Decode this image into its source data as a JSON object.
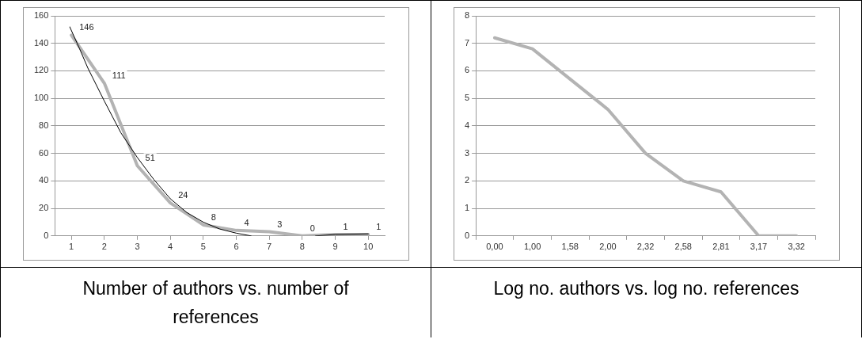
{
  "chart_data": [
    {
      "type": "line",
      "title": "Number of authors vs. number of references",
      "x": [
        1,
        2,
        3,
        4,
        5,
        6,
        7,
        8,
        9,
        10
      ],
      "xlim": [
        0.5,
        10.5
      ],
      "xticks": [
        1,
        2,
        3,
        4,
        5,
        6,
        7,
        8,
        9,
        10
      ],
      "ylim": [
        0,
        160
      ],
      "yticks": [
        0,
        20,
        40,
        60,
        80,
        100,
        120,
        140,
        160
      ],
      "grid": "y",
      "marker": "none",
      "legend": false,
      "series": [
        {
          "color": "#b3b3b3",
          "values": [
            146,
            111,
            51,
            24,
            8,
            4,
            3,
            0,
            1,
            1
          ],
          "value_labels": [
            "146",
            "111",
            "51",
            "24",
            "8",
            "4",
            "3",
            "0",
            "1",
            "1"
          ]
        },
        {
          "type": "line",
          "color": "#000000",
          "x": [
            0.95,
            1.25,
            1.5,
            2,
            2.5,
            3,
            3.5,
            4,
            4.5,
            5,
            5.5,
            6,
            6.45,
            7.5,
            8.4,
            9,
            10
          ],
          "values": [
            152,
            136,
            122,
            98,
            75,
            57,
            41,
            27,
            17,
            10,
            5,
            2,
            0,
            null,
            0,
            1,
            1.5
          ]
        }
      ]
    },
    {
      "type": "line",
      "title": "Log no. authors vs. log no. references",
      "categories": [
        "0,00",
        "1,00",
        "1,58",
        "2,00",
        "2,32",
        "2,58",
        "2,81",
        "3,17",
        "3,32"
      ],
      "ylim": [
        0,
        8
      ],
      "yticks": [
        0,
        1,
        2,
        3,
        4,
        5,
        6,
        7,
        8
      ],
      "grid": "y",
      "marker": "none",
      "legend": false,
      "series": [
        {
          "color": "#b3b3b3",
          "values": [
            7.2,
            6.8,
            5.7,
            4.6,
            3.0,
            2.0,
            1.6,
            0,
            0
          ]
        }
      ]
    }
  ]
}
